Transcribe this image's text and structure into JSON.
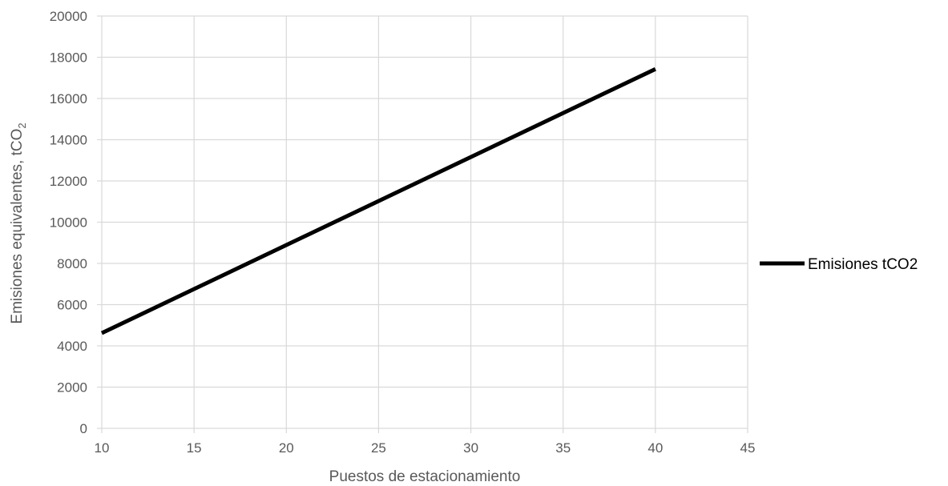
{
  "chart_data": {
    "type": "line",
    "title": "",
    "xlabel": "Puestos de estacionamiento",
    "ylabel": {
      "main": "Emisiones equivalentes, tCO",
      "subscript": "2"
    },
    "xlim": [
      10,
      45
    ],
    "ylim": [
      0,
      20000
    ],
    "x_ticks": [
      10,
      15,
      20,
      25,
      30,
      35,
      40,
      45
    ],
    "y_ticks": [
      0,
      2000,
      4000,
      6000,
      8000,
      10000,
      12000,
      14000,
      16000,
      18000,
      20000
    ],
    "grid": true,
    "legend_position": "right",
    "series": [
      {
        "name": "Emisiones tCO2",
        "color": "#000000",
        "x": [
          10,
          40
        ],
        "y": [
          4620,
          17430
        ]
      }
    ]
  },
  "colors": {
    "grid": "#d9d9d9",
    "tick_text": "#595959",
    "series": "#000000"
  }
}
